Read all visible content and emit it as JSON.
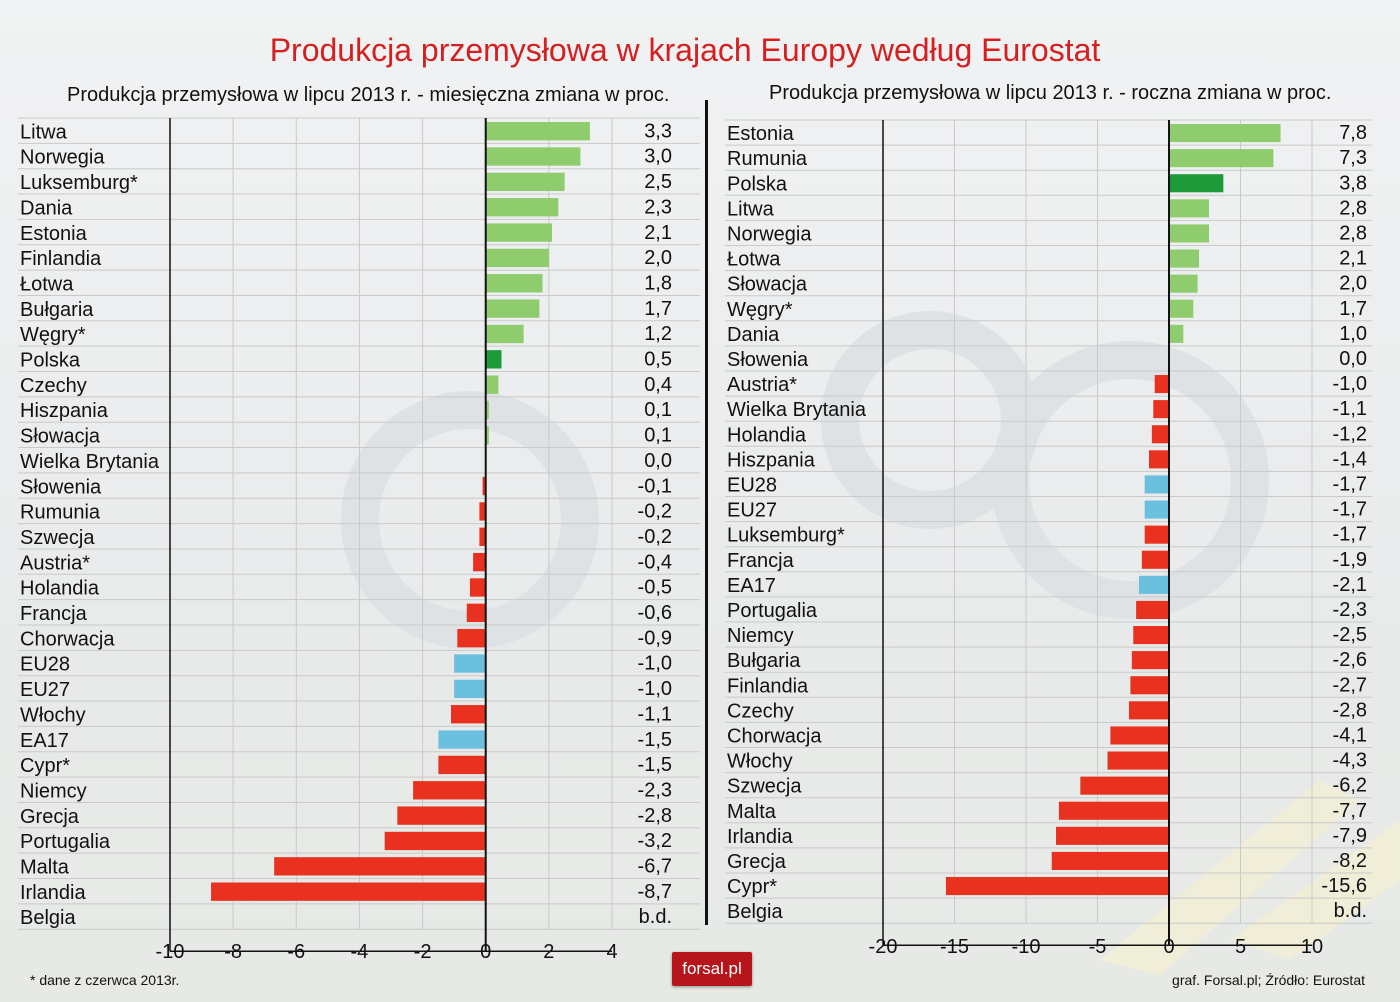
{
  "title": "Produkcja przemysłowa w krajach Europy według Eurostat",
  "footnote": "* dane z czerwca 2013r.",
  "credit": "graf. Forsal.pl; Źródło: Eurostat",
  "logo": "forsal.pl",
  "colors": {
    "positive": "#8fcc6e",
    "poland": "#1e9a3a",
    "negative": "#e8321f",
    "aggregate": "#6cc0df",
    "title": "#d42020"
  },
  "chart_data": [
    {
      "type": "bar",
      "orientation": "horizontal",
      "title": "Produkcja przemysłowa w lipcu 2013 r. - miesięczna zmiana w proc.",
      "categories": [
        "Litwa",
        "Norwegia",
        "Luksemburg*",
        "Dania",
        "Estonia",
        "Finlandia",
        "Łotwa",
        "Bułgaria",
        "Węgry*",
        "Polska",
        "Czechy",
        "Hiszpania",
        "Słowacja",
        "Wielka Brytania",
        "Słowenia",
        "Rumunia",
        "Szwecja",
        "Austria*",
        "Holandia",
        "Francja",
        "Chorwacja",
        "EU28",
        "EU27",
        "Włochy",
        "EA17",
        "Cypr*",
        "Niemcy",
        "Grecja",
        "Portugalia",
        "Malta",
        "Irlandia",
        "Belgia"
      ],
      "values": [
        3.3,
        3.0,
        2.5,
        2.3,
        2.1,
        2.0,
        1.8,
        1.7,
        1.2,
        0.5,
        0.4,
        0.1,
        0.1,
        0.0,
        -0.1,
        -0.2,
        -0.2,
        -0.4,
        -0.5,
        -0.6,
        -0.9,
        -1.0,
        -1.0,
        -1.1,
        -1.5,
        -1.5,
        -2.3,
        -2.8,
        -3.2,
        -6.7,
        -8.7,
        null
      ],
      "value_labels": [
        "3,3",
        "3,0",
        "2,5",
        "2,3",
        "2,1",
        "2,0",
        "1,8",
        "1,7",
        "1,2",
        "0,5",
        "0,4",
        "0,1",
        "0,1",
        "0,0",
        "-0,1",
        "-0,2",
        "-0,2",
        "-0,4",
        "-0,5",
        "-0,6",
        "-0,9",
        "-1,0",
        "-1,0",
        "-1,1",
        "-1,5",
        "-1,5",
        "-2,3",
        "-2,8",
        "-3,2",
        "-6,7",
        "-8,7",
        "b.d."
      ],
      "highlight": [
        "Polska"
      ],
      "aggregates": [
        "EU28",
        "EU27",
        "EA17"
      ],
      "xlim": [
        -10,
        4
      ],
      "xticks": [
        -10,
        -8,
        -6,
        -4,
        -2,
        0,
        2,
        4
      ],
      "xtick_labels": [
        "-10",
        "-8",
        "-6",
        "-4",
        "-2",
        "0",
        "2",
        "4"
      ],
      "grid": true
    },
    {
      "type": "bar",
      "orientation": "horizontal",
      "title": "Produkcja przemysłowa w lipcu 2013 r. - roczna zmiana w proc.",
      "categories": [
        "Estonia",
        "Rumunia",
        "Polska",
        "Litwa",
        "Norwegia",
        "Łotwa",
        "Słowacja",
        "Węgry*",
        "Dania",
        "Słowenia",
        "Austria*",
        "Wielka Brytania",
        "Holandia",
        "Hiszpania",
        "EU28",
        "EU27",
        "Luksemburg*",
        "Francja",
        "EA17",
        "Portugalia",
        "Niemcy",
        "Bułgaria",
        "Finlandia",
        "Czechy",
        "Chorwacja",
        "Włochy",
        "Szwecja",
        "Malta",
        "Irlandia",
        "Grecja",
        "Cypr*",
        "Belgia"
      ],
      "values": [
        7.8,
        7.3,
        3.8,
        2.8,
        2.8,
        2.1,
        2.0,
        1.7,
        1.0,
        0.0,
        -1.0,
        -1.1,
        -1.2,
        -1.4,
        -1.7,
        -1.7,
        -1.7,
        -1.9,
        -2.1,
        -2.3,
        -2.5,
        -2.6,
        -2.7,
        -2.8,
        -4.1,
        -4.3,
        -6.2,
        -7.7,
        -7.9,
        -8.2,
        -15.6,
        null
      ],
      "value_labels": [
        "7,8",
        "7,3",
        "3,8",
        "2,8",
        "2,8",
        "2,1",
        "2,0",
        "1,7",
        "1,0",
        "0,0",
        "-1,0",
        "-1,1",
        "-1,2",
        "-1,4",
        "-1,7",
        "-1,7",
        "-1,7",
        "-1,9",
        "-2,1",
        "-2,3",
        "-2,5",
        "-2,6",
        "-2,7",
        "-2,8",
        "-4,1",
        "-4,3",
        "-6,2",
        "-7,7",
        "-7,9",
        "-8,2",
        "-15,6",
        "b.d."
      ],
      "highlight": [
        "Polska"
      ],
      "aggregates": [
        "EU28",
        "EU27",
        "EA17"
      ],
      "xlim": [
        -20,
        10
      ],
      "xticks": [
        -20,
        -15,
        -10,
        -5,
        0,
        5,
        10
      ],
      "xtick_labels": [
        "-20",
        "-15",
        "-10",
        "-5",
        "0",
        "5",
        "10"
      ],
      "grid": true
    }
  ]
}
